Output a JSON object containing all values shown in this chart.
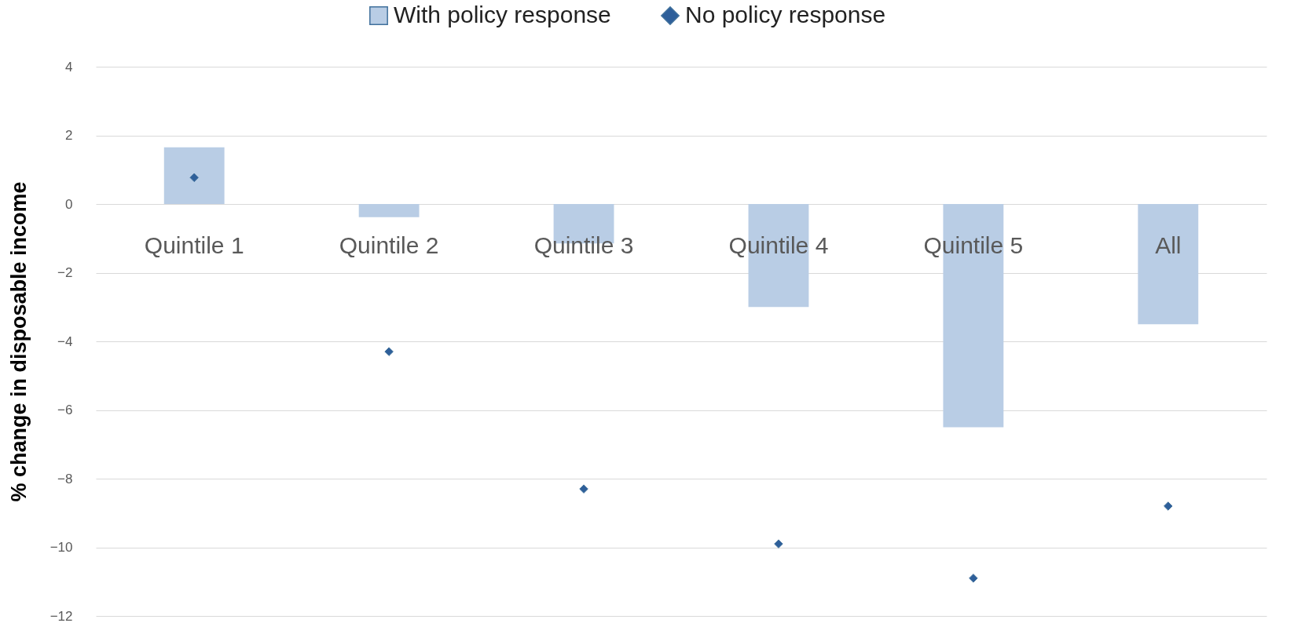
{
  "chart_data": {
    "type": "bar",
    "ylabel": "% change in disposable income",
    "categories": [
      "Quintile 1",
      "Quintile 2",
      "Quintile 3",
      "Quintile 4",
      "Quintile 5",
      "All"
    ],
    "series": [
      {
        "name": "With policy response",
        "color": "#b9cde5",
        "values": [
          1.65,
          -0.38,
          -1.15,
          -3.0,
          -6.5,
          -3.5
        ]
      },
      {
        "name": "No policy response",
        "type": "scatter",
        "color": "#2e5f9a",
        "values": [
          0.77,
          -4.3,
          -8.3,
          -9.9,
          -10.9,
          -8.8
        ]
      }
    ],
    "marker": "diamond",
    "ylim": [
      -12,
      4
    ],
    "yticks": [
      -12,
      -10,
      -8,
      -6,
      -4,
      -2,
      0,
      2,
      4
    ],
    "grid": "y",
    "legend": "top"
  }
}
